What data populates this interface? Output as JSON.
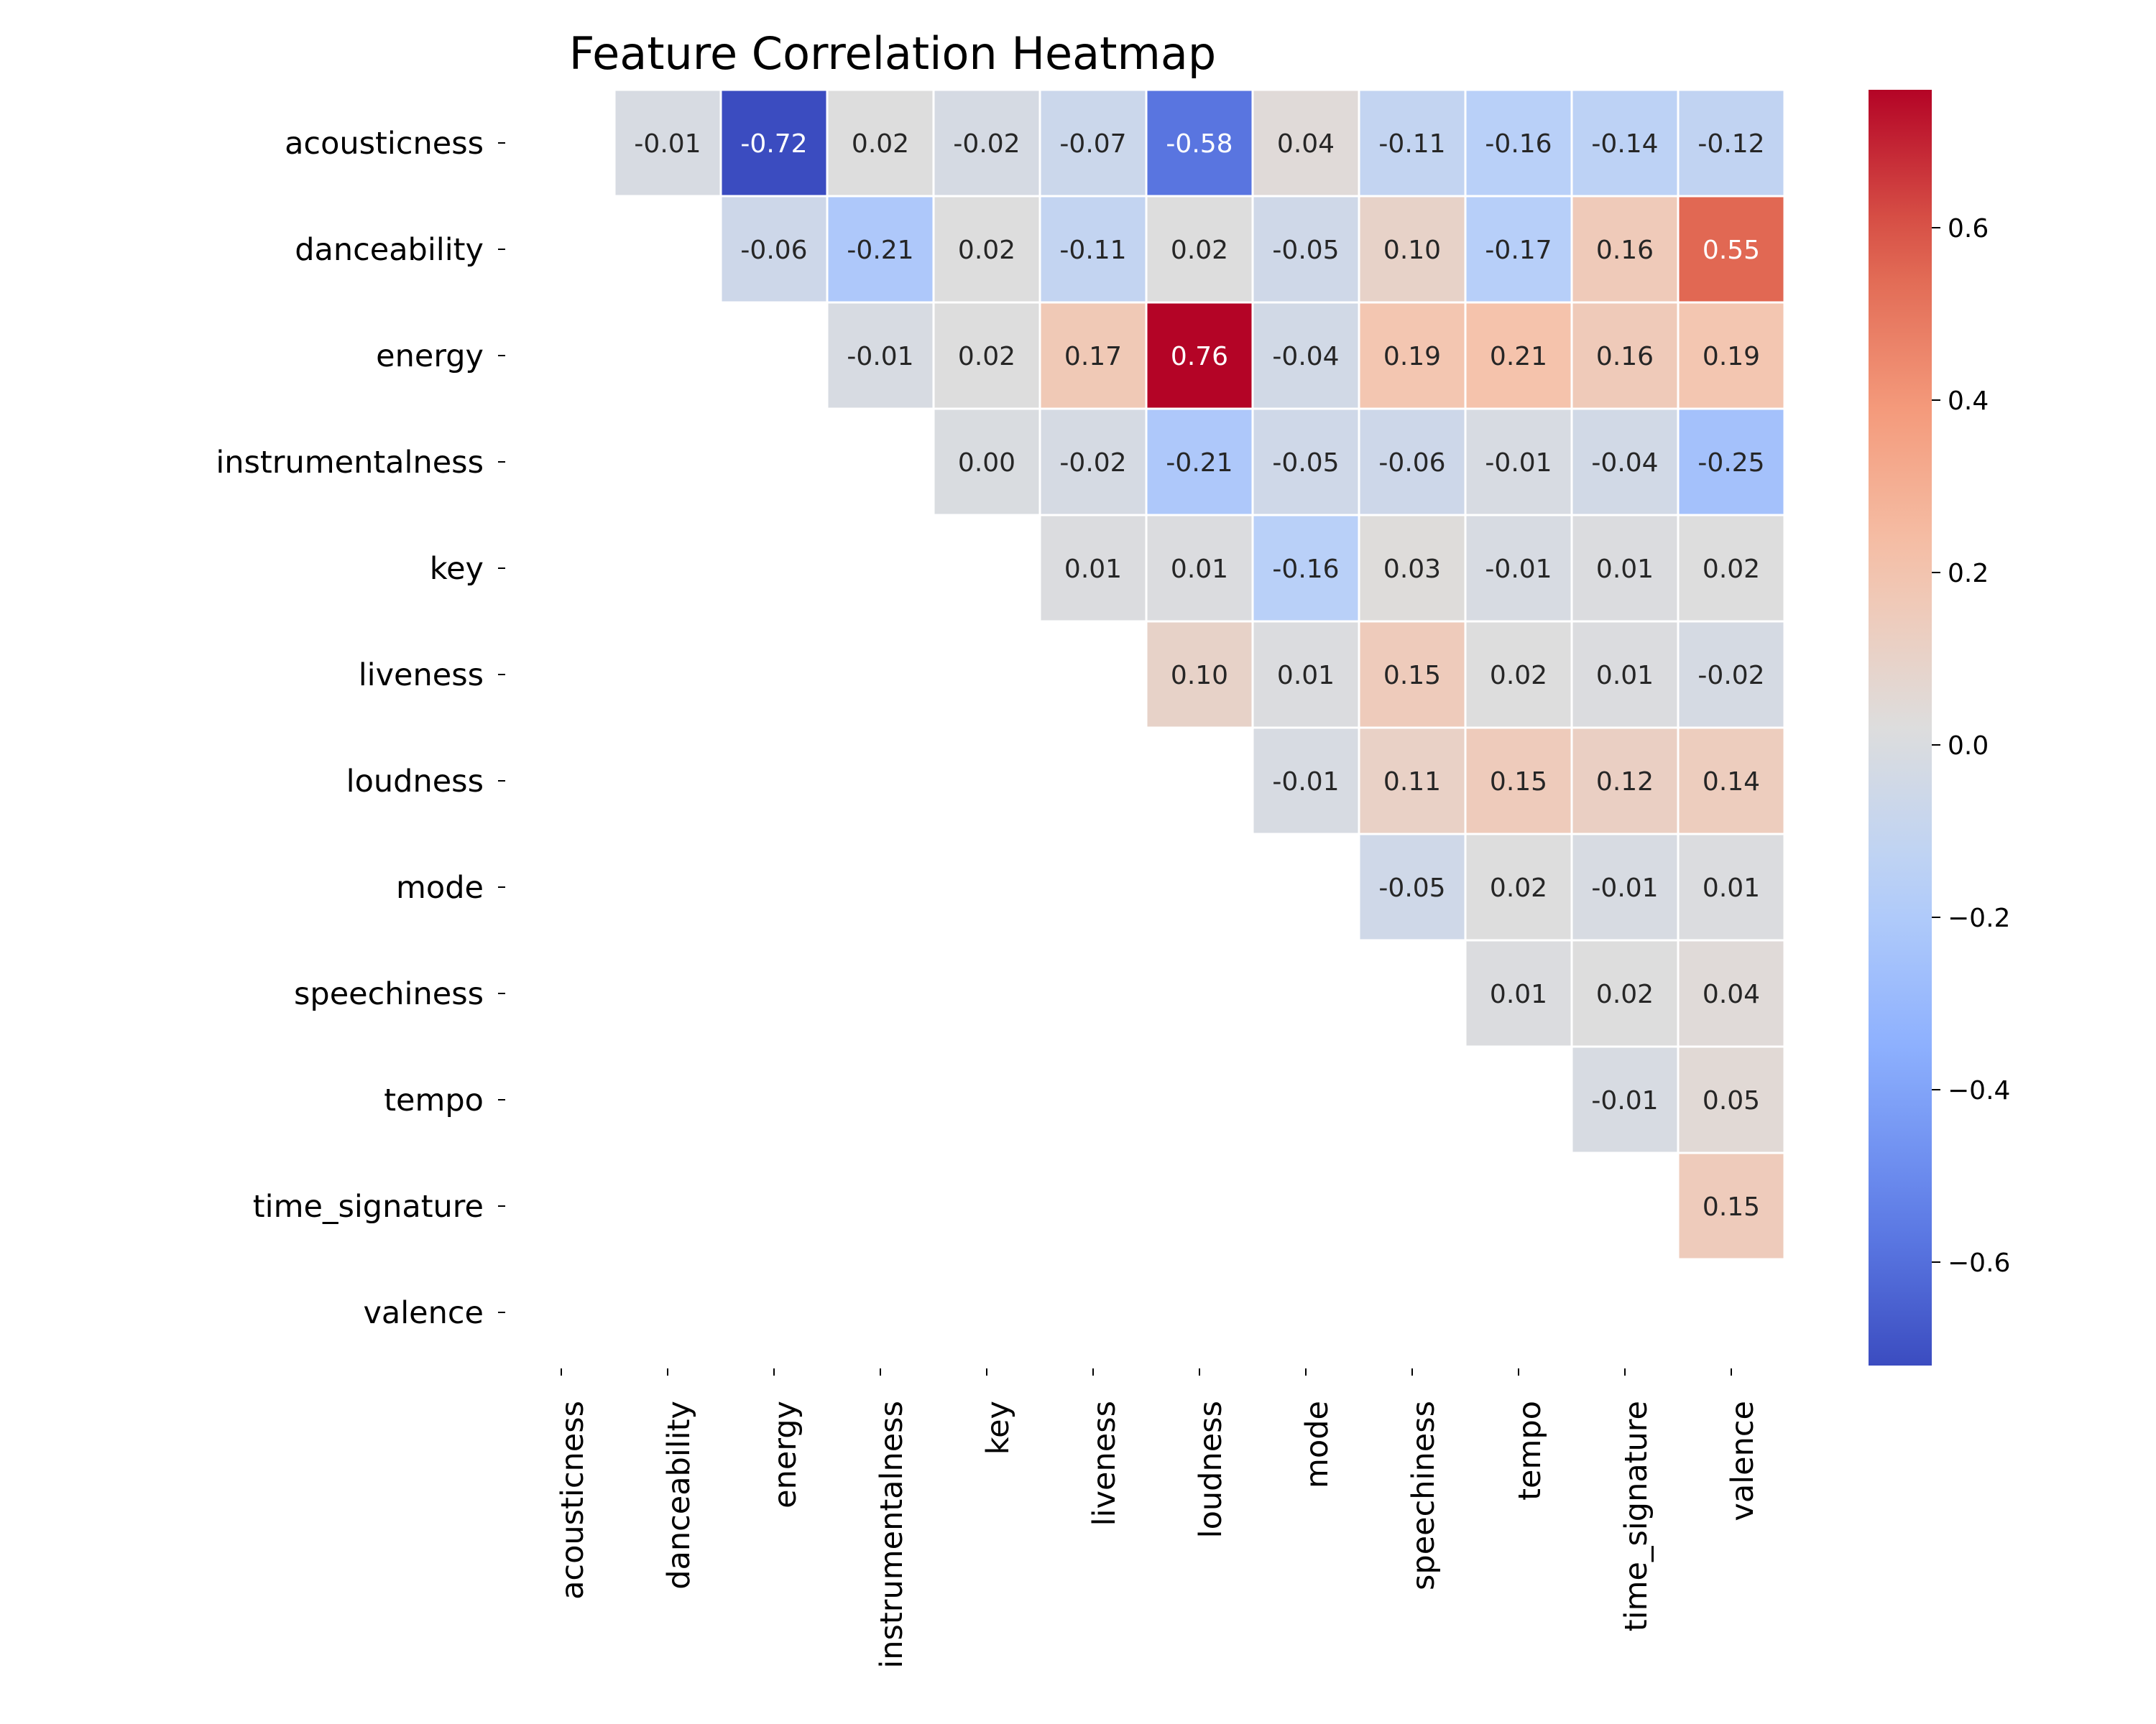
{
  "chart_data": {
    "type": "heatmap",
    "title": "Feature Correlation Heatmap",
    "labels": [
      "acousticness",
      "danceability",
      "energy",
      "instrumentalness",
      "key",
      "liveness",
      "loudness",
      "mode",
      "speechiness",
      "tempo",
      "time_signature",
      "valence"
    ],
    "mask": "upper-triangle-above-diagonal",
    "matrix": [
      [
        null,
        -0.01,
        -0.72,
        0.02,
        -0.02,
        -0.07,
        -0.58,
        0.04,
        -0.11,
        -0.16,
        -0.14,
        -0.12
      ],
      [
        null,
        null,
        -0.06,
        -0.21,
        0.02,
        -0.11,
        0.02,
        -0.05,
        0.1,
        -0.17,
        0.16,
        0.55
      ],
      [
        null,
        null,
        null,
        -0.01,
        0.02,
        0.17,
        0.76,
        -0.04,
        0.19,
        0.21,
        0.16,
        0.19
      ],
      [
        null,
        null,
        null,
        null,
        0.0,
        -0.02,
        -0.21,
        -0.05,
        -0.06,
        -0.01,
        -0.04,
        -0.25
      ],
      [
        null,
        null,
        null,
        null,
        null,
        0.01,
        0.01,
        -0.16,
        0.03,
        -0.01,
        0.01,
        0.02
      ],
      [
        null,
        null,
        null,
        null,
        null,
        null,
        0.1,
        0.01,
        0.15,
        0.02,
        0.01,
        -0.02
      ],
      [
        null,
        null,
        null,
        null,
        null,
        null,
        null,
        -0.01,
        0.11,
        0.15,
        0.12,
        0.14
      ],
      [
        null,
        null,
        null,
        null,
        null,
        null,
        null,
        null,
        -0.05,
        0.02,
        -0.01,
        0.01
      ],
      [
        null,
        null,
        null,
        null,
        null,
        null,
        null,
        null,
        null,
        0.01,
        0.02,
        0.04
      ],
      [
        null,
        null,
        null,
        null,
        null,
        null,
        null,
        null,
        null,
        null,
        -0.01,
        0.05
      ],
      [
        null,
        null,
        null,
        null,
        null,
        null,
        null,
        null,
        null,
        null,
        null,
        0.15
      ],
      [
        null,
        null,
        null,
        null,
        null,
        null,
        null,
        null,
        null,
        null,
        null,
        null
      ]
    ],
    "colormap": "coolwarm",
    "colorbar": {
      "range": [
        -0.72,
        0.76
      ],
      "ticks": [
        -0.6,
        -0.4,
        -0.2,
        0.0,
        0.2,
        0.4,
        0.6
      ],
      "tick_labels": [
        "−0.6",
        "−0.4",
        "−0.2",
        "0.0",
        "0.2",
        "0.4",
        "0.6"
      ]
    },
    "value_format": "0.00"
  }
}
